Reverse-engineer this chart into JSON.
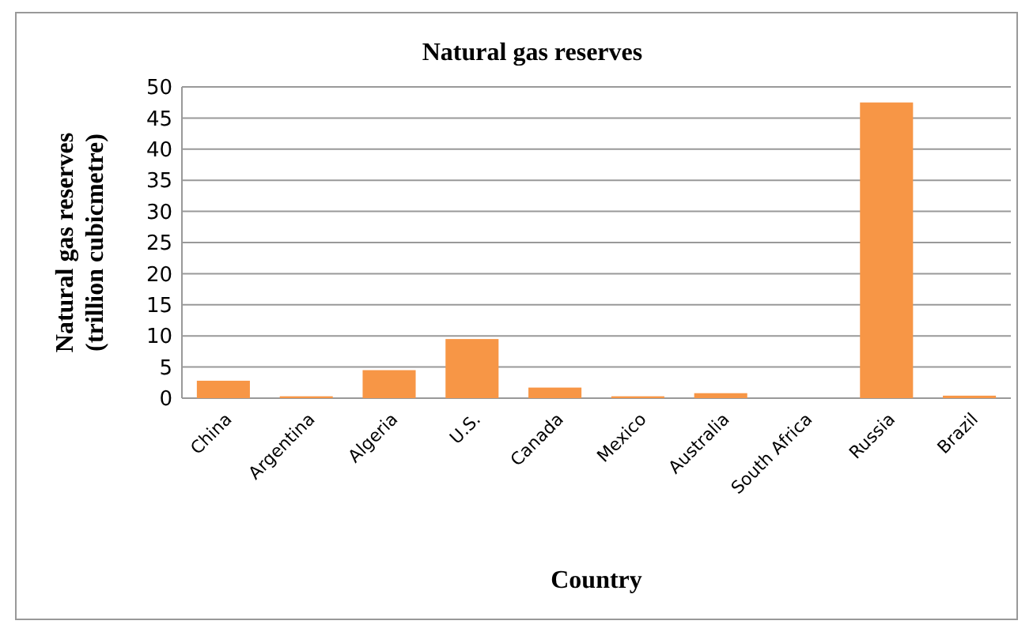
{
  "chart_data": {
    "type": "bar",
    "title": "Natural gas reserves",
    "xlabel": "Country",
    "ylabel": "Natural  gas reserves (trillion cubicmetre)",
    "categories": [
      "China",
      "Argentina",
      "Algeria",
      "U.S.",
      "Canada",
      "Mexico",
      "Australia",
      "South Africa",
      "Russia",
      "Brazil"
    ],
    "values": [
      2.8,
      0.3,
      4.5,
      9.5,
      1.7,
      0.3,
      0.8,
      0,
      47.5,
      0.4
    ],
    "color": "#f79646",
    "ylim": [
      0,
      50
    ],
    "yticks": [
      0,
      5,
      10,
      15,
      20,
      25,
      30,
      35,
      40,
      45,
      50
    ],
    "grid": "y"
  }
}
